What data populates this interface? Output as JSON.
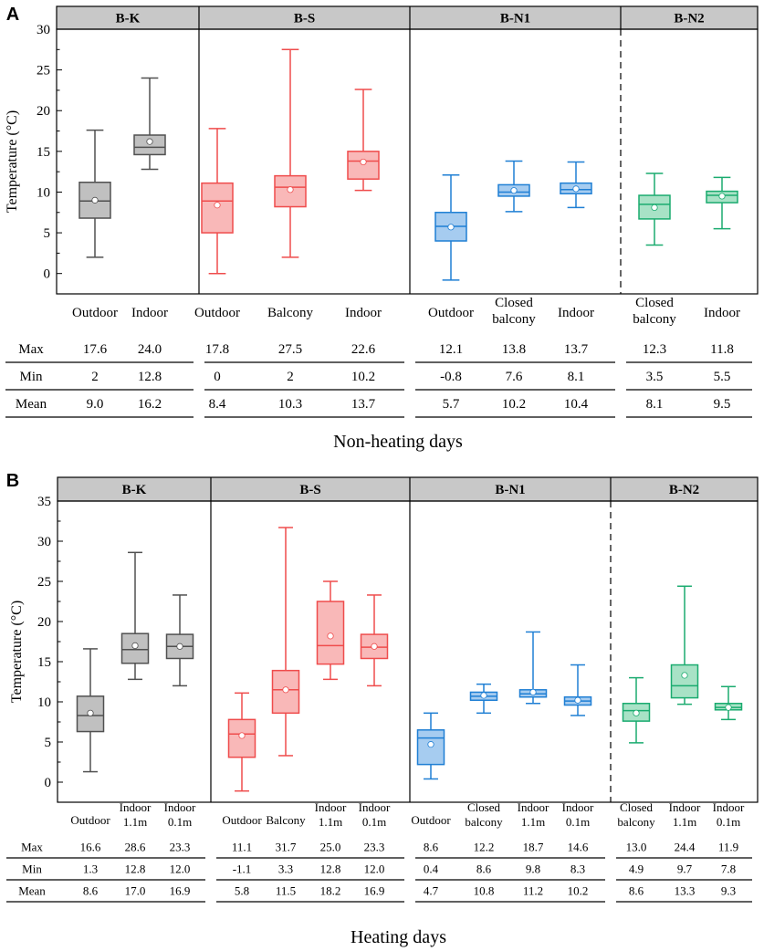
{
  "chart_data": [
    {
      "type": "boxplot",
      "panel_label": "A",
      "title": "Non-heating days",
      "ylabel": "Temperature (°C)",
      "ylim": [
        -2.5,
        30
      ],
      "yticks": [
        "0",
        "5",
        "10",
        "15",
        "20",
        "25",
        "30"
      ],
      "groups": [
        {
          "name": "B-K",
          "color": "#505050",
          "fill": "#c0c0c0",
          "categories": [
            {
              "label": [
                "Outdoor"
              ],
              "min": 2,
              "q1": 6.8,
              "median": 8.9,
              "q3": 11.2,
              "max": 17.6,
              "mean": 9.0,
              "table": [
                "17.6",
                "2",
                "9.0"
              ]
            },
            {
              "label": [
                "Indoor"
              ],
              "min": 12.8,
              "q1": 14.6,
              "median": 15.5,
              "q3": 17.0,
              "max": 24.0,
              "mean": 16.2,
              "table": [
                "24.0",
                "12.8",
                "16.2"
              ]
            }
          ]
        },
        {
          "name": "B-S",
          "color": "#ef4c4c",
          "fill": "#f9b8b8",
          "categories": [
            {
              "label": [
                "Outdoor"
              ],
              "min": 0,
              "q1": 5.0,
              "median": 8.9,
              "q3": 11.1,
              "max": 17.8,
              "mean": 8.4,
              "table": [
                "17.8",
                "0",
                "8.4"
              ]
            },
            {
              "label": [
                "Balcony"
              ],
              "min": 2,
              "q1": 8.2,
              "median": 10.6,
              "q3": 12.0,
              "max": 27.5,
              "mean": 10.3,
              "table": [
                "27.5",
                "2",
                "10.3"
              ]
            },
            {
              "label": [
                "Indoor"
              ],
              "min": 10.2,
              "q1": 11.6,
              "median": 13.8,
              "q3": 15.0,
              "max": 22.6,
              "mean": 13.7,
              "table": [
                "22.6",
                "10.2",
                "13.7"
              ]
            }
          ]
        },
        {
          "name": "B-N1",
          "color": "#1f7fd4",
          "fill": "#a6ccf0",
          "categories": [
            {
              "label": [
                "Outdoor"
              ],
              "min": -0.8,
              "q1": 4.0,
              "median": 5.8,
              "q3": 7.5,
              "max": 12.1,
              "mean": 5.7,
              "table": [
                "12.1",
                "-0.8",
                "5.7"
              ]
            },
            {
              "label": [
                "Closed",
                "balcony"
              ],
              "min": 7.6,
              "q1": 9.5,
              "median": 10.0,
              "q3": 10.9,
              "max": 13.8,
              "mean": 10.2,
              "table": [
                "13.8",
                "7.6",
                "10.2"
              ]
            },
            {
              "label": [
                "Indoor"
              ],
              "min": 8.1,
              "q1": 9.8,
              "median": 10.3,
              "q3": 11.1,
              "max": 13.7,
              "mean": 10.4,
              "table": [
                "13.7",
                "8.1",
                "10.4"
              ]
            }
          ]
        },
        {
          "name": "B-N2",
          "color": "#1aab6f",
          "fill": "#a8e2c6",
          "categories": [
            {
              "label": [
                "Closed",
                "balcony"
              ],
              "min": 3.5,
              "q1": 6.7,
              "median": 8.5,
              "q3": 9.6,
              "max": 12.3,
              "mean": 8.1,
              "table": [
                "12.3",
                "3.5",
                "8.1"
              ]
            },
            {
              "label": [
                "Indoor"
              ],
              "min": 5.5,
              "q1": 8.7,
              "median": 9.6,
              "q3": 10.1,
              "max": 11.8,
              "mean": 9.5,
              "table": [
                "11.8",
                "5.5",
                "9.5"
              ]
            }
          ]
        }
      ],
      "table_rows": [
        "Max",
        "Min",
        "Mean"
      ]
    },
    {
      "type": "boxplot",
      "panel_label": "B",
      "title": "Heating days",
      "ylabel": "Temperature (°C)",
      "ylim": [
        -2.5,
        35
      ],
      "yticks": [
        "0",
        "5",
        "10",
        "15",
        "20",
        "25",
        "30",
        "35"
      ],
      "groups": [
        {
          "name": "B-K",
          "color": "#505050",
          "fill": "#c0c0c0",
          "categories": [
            {
              "label": [
                "Outdoor"
              ],
              "min": 1.3,
              "q1": 6.3,
              "median": 8.3,
              "q3": 10.7,
              "max": 16.6,
              "mean": 8.6,
              "table": [
                "16.6",
                "1.3",
                "8.6"
              ]
            },
            {
              "label": [
                "Indoor",
                "1.1m"
              ],
              "min": 12.8,
              "q1": 14.8,
              "median": 16.5,
              "q3": 18.5,
              "max": 28.6,
              "mean": 17.0,
              "table": [
                "28.6",
                "12.8",
                "17.0"
              ]
            },
            {
              "label": [
                "Indoor",
                "0.1m"
              ],
              "min": 12.0,
              "q1": 15.4,
              "median": 16.9,
              "q3": 18.4,
              "max": 23.3,
              "mean": 16.9,
              "table": [
                "23.3",
                "12.0",
                "16.9"
              ]
            }
          ]
        },
        {
          "name": "B-S",
          "color": "#ef4c4c",
          "fill": "#f9b8b8",
          "categories": [
            {
              "label": [
                "Outdoor"
              ],
              "min": -1.1,
              "q1": 3.1,
              "median": 6.0,
              "q3": 7.8,
              "max": 11.1,
              "mean": 5.8,
              "table": [
                "11.1",
                "-1.1",
                "5.8"
              ]
            },
            {
              "label": [
                "Balcony"
              ],
              "min": 3.3,
              "q1": 8.6,
              "median": 11.5,
              "q3": 13.9,
              "max": 31.7,
              "mean": 11.5,
              "table": [
                "31.7",
                "3.3",
                "11.5"
              ]
            },
            {
              "label": [
                "Indoor",
                "1.1m"
              ],
              "min": 12.8,
              "q1": 14.7,
              "median": 17.0,
              "q3": 22.5,
              "max": 25.0,
              "mean": 18.2,
              "table": [
                "25.0",
                "12.8",
                "18.2"
              ]
            },
            {
              "label": [
                "Indoor",
                "0.1m"
              ],
              "min": 12.0,
              "q1": 15.4,
              "median": 16.8,
              "q3": 18.4,
              "max": 23.3,
              "mean": 16.9,
              "table": [
                "23.3",
                "12.0",
                "16.9"
              ]
            }
          ]
        },
        {
          "name": "B-N1",
          "color": "#1f7fd4",
          "fill": "#a6ccf0",
          "categories": [
            {
              "label": [
                "Outdoor"
              ],
              "min": 0.4,
              "q1": 2.2,
              "median": 5.5,
              "q3": 6.5,
              "max": 8.6,
              "mean": 4.7,
              "table": [
                "8.6",
                "0.4",
                "4.7"
              ]
            },
            {
              "label": [
                "Closed",
                "balcony"
              ],
              "min": 8.6,
              "q1": 10.2,
              "median": 10.7,
              "q3": 11.2,
              "max": 12.2,
              "mean": 10.8,
              "table": [
                "12.2",
                "8.6",
                "10.8"
              ]
            },
            {
              "label": [
                "Indoor",
                "1.1m"
              ],
              "min": 9.8,
              "q1": 10.6,
              "median": 11.0,
              "q3": 11.5,
              "max": 18.7,
              "mean": 11.2,
              "table": [
                "18.7",
                "9.8",
                "11.2"
              ]
            },
            {
              "label": [
                "Indoor",
                "0.1m"
              ],
              "min": 8.3,
              "q1": 9.6,
              "median": 10.1,
              "q3": 10.6,
              "max": 14.6,
              "mean": 10.2,
              "table": [
                "14.6",
                "8.3",
                "10.2"
              ]
            }
          ]
        },
        {
          "name": "B-N2",
          "color": "#1aab6f",
          "fill": "#a8e2c6",
          "categories": [
            {
              "label": [
                "Closed",
                "balcony"
              ],
              "min": 4.9,
              "q1": 7.6,
              "median": 8.9,
              "q3": 9.8,
              "max": 13.0,
              "mean": 8.6,
              "table": [
                "13.0",
                "4.9",
                "8.6"
              ]
            },
            {
              "label": [
                "Indoor",
                "1.1m"
              ],
              "min": 9.7,
              "q1": 10.5,
              "median": 12.0,
              "q3": 14.6,
              "max": 24.4,
              "mean": 13.3,
              "table": [
                "24.4",
                "9.7",
                "13.3"
              ]
            },
            {
              "label": [
                "Indoor",
                "0.1m"
              ],
              "min": 7.8,
              "q1": 9.0,
              "median": 9.3,
              "q3": 9.8,
              "max": 11.9,
              "mean": 9.3,
              "table": [
                "11.9",
                "7.8",
                "9.3"
              ]
            }
          ]
        }
      ],
      "table_rows": [
        "Max",
        "Min",
        "Mean"
      ]
    }
  ]
}
